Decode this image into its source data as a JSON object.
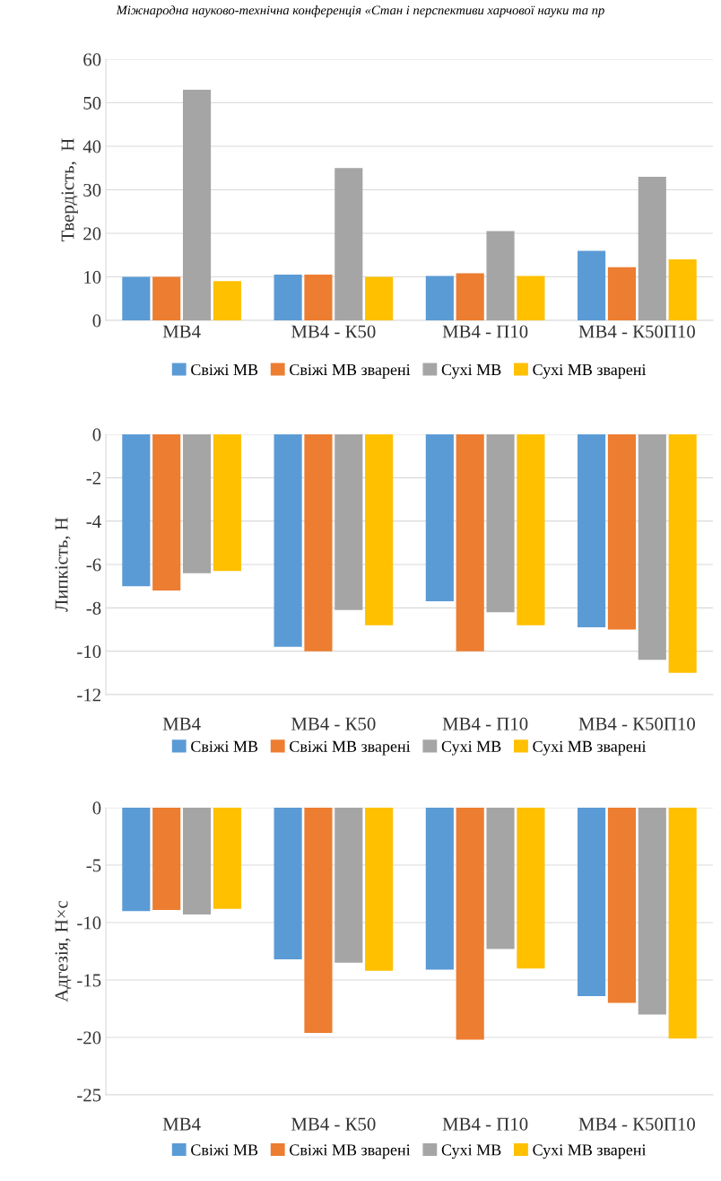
{
  "chart_data": [
    {
      "type": "bar",
      "ylabel": "Твердість,  Н",
      "annotations": [
        "Міжнародна науково-технічна конференція «Стан і перспективи харчової науки та пр"
      ],
      "categories": [
        "МВ4",
        "МВ4 - К50",
        "МВ4 - П10",
        "МВ4 - К50П10"
      ],
      "ylim": [
        0,
        60
      ],
      "yticks": [
        0,
        10,
        20,
        30,
        40,
        50,
        60
      ],
      "grid": "y",
      "legend": "bottom",
      "series": [
        {
          "name": "Свіжі МВ",
          "color": "#5b9bd5",
          "values": [
            10,
            10.5,
            10.2,
            16
          ]
        },
        {
          "name": "Свіжі МВ зварені",
          "color": "#ed7d31",
          "values": [
            10,
            10.5,
            10.8,
            12.2
          ]
        },
        {
          "name": "Сухі МВ",
          "color": "#a5a5a5",
          "values": [
            53,
            35,
            20.5,
            33
          ]
        },
        {
          "name": "Сухі МВ зварені",
          "color": "#ffc000",
          "values": [
            9,
            10,
            10.2,
            14
          ]
        }
      ]
    },
    {
      "type": "bar",
      "ylabel": "Липкість, Н",
      "categories": [
        "МВ4",
        "МВ4 - К50",
        "МВ4 - П10",
        "МВ4 - К50П10"
      ],
      "ylim": [
        -12,
        0
      ],
      "yticks": [
        -12,
        -10,
        -8,
        -6,
        -4,
        -2,
        0
      ],
      "grid": "y",
      "legend": "bottom",
      "series": [
        {
          "name": "Свіжі МВ",
          "color": "#5b9bd5",
          "values": [
            -7,
            -9.8,
            -7.7,
            -8.9
          ]
        },
        {
          "name": "Свіжі МВ зварені",
          "color": "#ed7d31",
          "values": [
            -7.2,
            -10,
            -10,
            -9
          ]
        },
        {
          "name": "Сухі МВ",
          "color": "#a5a5a5",
          "values": [
            -6.4,
            -8.1,
            -8.2,
            -10.4
          ]
        },
        {
          "name": "Сухі МВ зварені",
          "color": "#ffc000",
          "values": [
            -6.3,
            -8.8,
            -8.8,
            -11
          ]
        }
      ]
    },
    {
      "type": "bar",
      "ylabel": "Адгезія, Н×с",
      "categories": [
        "МВ4",
        "МВ4 - К50",
        "МВ4 - П10",
        "МВ4 - К50П10"
      ],
      "ylim": [
        -25,
        0
      ],
      "yticks": [
        -25,
        -20,
        -15,
        -10,
        -5,
        0
      ],
      "grid": "y",
      "legend": "bottom",
      "series": [
        {
          "name": "Свіжі МВ",
          "color": "#5b9bd5",
          "values": [
            -9,
            -13.2,
            -14.1,
            -16.4
          ]
        },
        {
          "name": "Свіжі МВ зварені",
          "color": "#ed7d31",
          "values": [
            -8.9,
            -19.6,
            -20.2,
            -17
          ]
        },
        {
          "name": "Сухі МВ",
          "color": "#a5a5a5",
          "values": [
            -9.3,
            -13.5,
            -12.3,
            -18
          ]
        },
        {
          "name": "Сухі МВ зварені",
          "color": "#ffc000",
          "values": [
            -8.8,
            -14.2,
            -14,
            -20.1
          ]
        }
      ]
    }
  ]
}
